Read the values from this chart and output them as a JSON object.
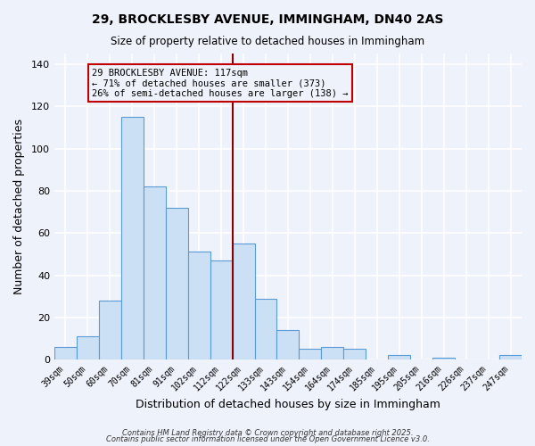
{
  "title": "29, BROCKLESBY AVENUE, IMMINGHAM, DN40 2AS",
  "subtitle": "Size of property relative to detached houses in Immingham",
  "xlabel": "Distribution of detached houses by size in Immingham",
  "ylabel": "Number of detached properties",
  "categories": [
    "39sqm",
    "50sqm",
    "60sqm",
    "70sqm",
    "81sqm",
    "91sqm",
    "102sqm",
    "112sqm",
    "122sqm",
    "133sqm",
    "143sqm",
    "154sqm",
    "164sqm",
    "174sqm",
    "185sqm",
    "195sqm",
    "205sqm",
    "216sqm",
    "226sqm",
    "237sqm",
    "247sqm"
  ],
  "values": [
    6,
    11,
    28,
    115,
    82,
    72,
    51,
    47,
    55,
    29,
    14,
    5,
    6,
    5,
    0,
    2,
    0,
    1,
    0,
    0,
    2
  ],
  "bar_color": "#cce0f5",
  "bar_edge_color": "#5b9bd5",
  "vline_x_index": 7.5,
  "vline_color": "#8b0000",
  "annotation_title": "29 BROCKLESBY AVENUE: 117sqm",
  "annotation_line1": "← 71% of detached houses are smaller (373)",
  "annotation_line2": "26% of semi-detached houses are larger (138) →",
  "annotation_box_edge": "#c00000",
  "ylim": [
    0,
    145
  ],
  "yticks": [
    0,
    20,
    40,
    60,
    80,
    100,
    120,
    140
  ],
  "background_color": "#eef2fb",
  "grid_color": "#ffffff",
  "footer1": "Contains HM Land Registry data © Crown copyright and database right 2025.",
  "footer2": "Contains public sector information licensed under the Open Government Licence v3.0."
}
